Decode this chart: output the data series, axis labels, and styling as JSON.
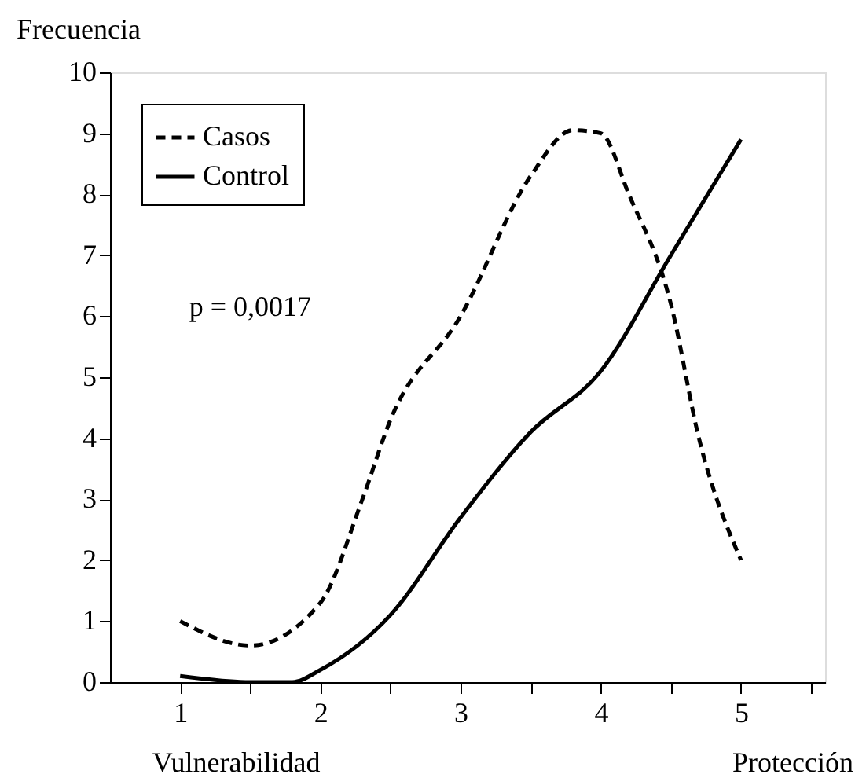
{
  "chart_data": {
    "type": "line",
    "ylabel": "Frecuencia",
    "annotations": [
      "p = 0,0017",
      "Vulnerabilidad",
      "Protección"
    ],
    "xlim": [
      0.5,
      5.6
    ],
    "xticks": [
      1,
      {
        "value": 1.5,
        "label": null
      },
      2,
      {
        "value": 2.5,
        "label": null
      },
      3,
      {
        "value": 3.5,
        "label": null
      },
      4,
      {
        "value": 4.5,
        "label": null
      },
      5,
      {
        "value": 5.5,
        "label": null
      }
    ],
    "ylim": [
      0,
      10
    ],
    "yticks": [
      0,
      1,
      2,
      3,
      4,
      5,
      6,
      7,
      8,
      9,
      10
    ],
    "grid": false,
    "legend": "top left",
    "marker": "none",
    "series": [
      {
        "name": "Casos",
        "color": "#000000",
        "line_style": "dashed",
        "x": [
          1,
          1.5,
          2,
          2.3,
          2.5,
          3,
          3.5,
          3.8,
          4,
          4.2,
          4.5,
          4.7,
          5
        ],
        "values": [
          1.0,
          0.6,
          1.3,
          3.0,
          4.3,
          6.0,
          8.3,
          9.05,
          9.0,
          8.0,
          6.2,
          4.0,
          2.0
        ]
      },
      {
        "name": "Control",
        "color": "#000000",
        "line_style": "solid",
        "x": [
          1,
          1.5,
          1.8,
          2,
          2.5,
          3,
          3.5,
          4,
          4.5,
          5
        ],
        "values": [
          0.1,
          0.0,
          0.0,
          0.2,
          1.1,
          2.7,
          4.1,
          5.1,
          7.0,
          8.9
        ]
      }
    ]
  }
}
